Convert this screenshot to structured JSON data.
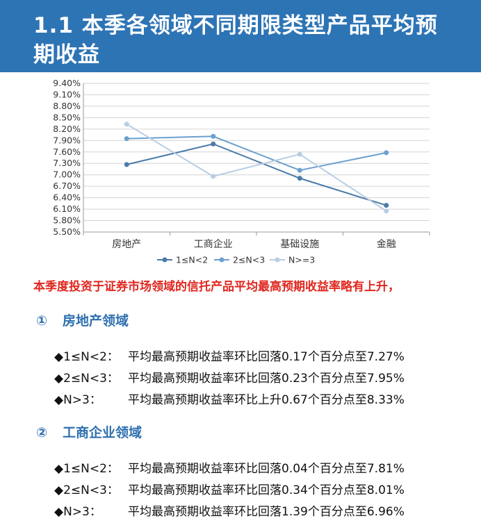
{
  "header": {
    "title": "1.1 本季各领域不同期限类型产品平均预期收益"
  },
  "chart_data": {
    "type": "line",
    "categories": [
      "房地产",
      "工商企业",
      "基础设施",
      "金融"
    ],
    "ylim": [
      5.5,
      9.4
    ],
    "yticks": [
      "9.40%",
      "9.10%",
      "8.80%",
      "8.50%",
      "8.20%",
      "7.90%",
      "7.60%",
      "7.30%",
      "7.00%",
      "6.70%",
      "6.40%",
      "6.10%",
      "5.80%",
      "5.50%"
    ],
    "legend_position": "bottom",
    "grid": true,
    "series": [
      {
        "name": "1≤N<2",
        "color": "#4a7aa8",
        "values": [
          7.27,
          7.81,
          6.91,
          6.2
        ]
      },
      {
        "name": "2≤N<3",
        "color": "#6b9fcf",
        "values": [
          7.95,
          8.01,
          7.12,
          7.58
        ]
      },
      {
        "name": "N>=3",
        "color": "#b8cde3",
        "values": [
          8.33,
          6.96,
          7.54,
          6.05
        ]
      }
    ]
  },
  "highlight": "本季度投资于证券市场领域的信托产品平均最高预期收益率略有上升，",
  "sections": [
    {
      "num": "①",
      "title": "房地产领域",
      "items": [
        {
          "label": "◆1≤N<2：",
          "text": "平均最高预期收益率环比回落0.17个百分点至7.27%"
        },
        {
          "label": "◆2≤N<3：",
          "text": "平均最高预期收益率环比回落0.23个百分点至7.95%"
        },
        {
          "label": "◆N>3：",
          "text": "平均最高预期收益率环比上升0.67个百分点至8.33%"
        }
      ]
    },
    {
      "num": "②",
      "title": "工商企业领域",
      "items": [
        {
          "label": "◆1≤N<2：",
          "text": "平均最高预期收益率环比回落0.04个百分点至7.81%"
        },
        {
          "label": "◆2≤N<3：",
          "text": "平均最高预期收益率环比回落0.34个百分点至8.01%"
        },
        {
          "label": "◆N>3：",
          "text": "平均最高预期收益率环比回落1.39个百分点至6.96%"
        }
      ]
    }
  ]
}
